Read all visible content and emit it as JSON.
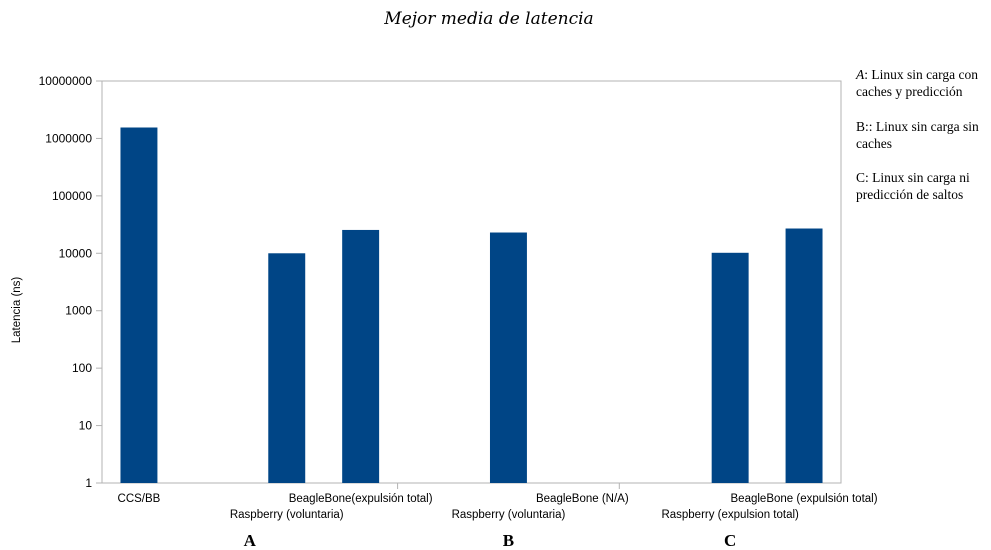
{
  "chart_data": {
    "type": "bar",
    "title": "Mejor media de latencia",
    "ylabel": "Latencia (ns)",
    "xlabel": "",
    "yscale": "log",
    "ylim": [
      1,
      10000000
    ],
    "yticks": [
      "1",
      "10",
      "100",
      "1000",
      "10000",
      "100000",
      "1000000",
      "10000000"
    ],
    "grid": false,
    "legend": "none",
    "bar_color": "#004586",
    "categories": [
      "CCS/BB",
      "",
      "Raspberry (voluntaria)",
      "BeagleBone(expulsión total)",
      "",
      "Raspberry (voluntaria)",
      "BeagleBone (N/A)",
      "",
      "Raspberry (expulsion total)",
      "BeagleBone (expulsión total)"
    ],
    "values": [
      1550000,
      null,
      10000,
      25500,
      null,
      23000,
      null,
      null,
      10200,
      27000
    ],
    "groups": [
      {
        "label": "A",
        "start": 0,
        "end": 4
      },
      {
        "label": "B",
        "start": 4,
        "end": 7
      },
      {
        "label": "C",
        "start": 7,
        "end": 10
      }
    ]
  },
  "notes": [
    {
      "key": "A",
      "text": ": Linux sin carga con caches y predicción"
    },
    {
      "key": "B:",
      "text": ": Linux sin carga sin caches"
    },
    {
      "key": "C",
      "text": ": Linux sin carga ni predicción de saltos"
    }
  ]
}
